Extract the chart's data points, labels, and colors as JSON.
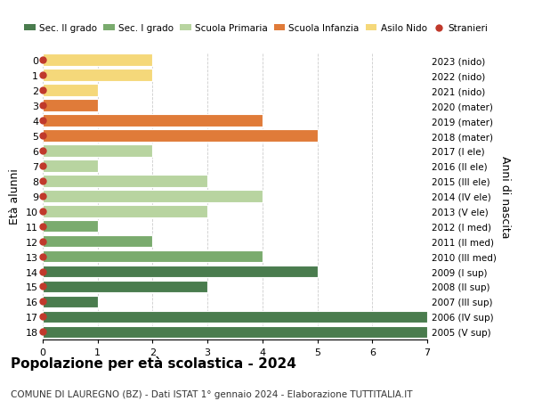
{
  "ages": [
    18,
    17,
    16,
    15,
    14,
    13,
    12,
    11,
    10,
    9,
    8,
    7,
    6,
    5,
    4,
    3,
    2,
    1,
    0
  ],
  "right_labels": [
    "2005 (V sup)",
    "2006 (IV sup)",
    "2007 (III sup)",
    "2008 (II sup)",
    "2009 (I sup)",
    "2010 (III med)",
    "2011 (II med)",
    "2012 (I med)",
    "2013 (V ele)",
    "2014 (IV ele)",
    "2015 (III ele)",
    "2016 (II ele)",
    "2017 (I ele)",
    "2018 (mater)",
    "2019 (mater)",
    "2020 (mater)",
    "2021 (nido)",
    "2022 (nido)",
    "2023 (nido)"
  ],
  "bar_values": [
    7,
    7,
    1,
    3,
    5,
    4,
    2,
    1,
    3,
    4,
    3,
    1,
    2,
    5,
    4,
    1,
    1,
    2,
    2
  ],
  "bar_colors": [
    "#4a7c4e",
    "#4a7c4e",
    "#4a7c4e",
    "#4a7c4e",
    "#4a7c4e",
    "#7aab6e",
    "#7aab6e",
    "#7aab6e",
    "#b8d4a0",
    "#b8d4a0",
    "#b8d4a0",
    "#b8d4a0",
    "#b8d4a0",
    "#e07b39",
    "#e07b39",
    "#e07b39",
    "#f5d87a",
    "#f5d87a",
    "#f5d87a"
  ],
  "stranieri_color": "#c0392b",
  "stranieri_marker_size": 5,
  "ylabel": "Età alunni",
  "right_ylabel": "Anni di nascita",
  "xlim": [
    0,
    7
  ],
  "xticks": [
    0,
    1,
    2,
    3,
    4,
    5,
    6,
    7
  ],
  "title": "Popolazione per età scolastica - 2024",
  "subtitle": "COMUNE DI LAUREGNO (BZ) - Dati ISTAT 1° gennaio 2024 - Elaborazione TUTTITALIA.IT",
  "legend_labels": [
    "Sec. II grado",
    "Sec. I grado",
    "Scuola Primaria",
    "Scuola Infanzia",
    "Asilo Nido",
    "Stranieri"
  ],
  "legend_colors": [
    "#4a7c4e",
    "#7aab6e",
    "#b8d4a0",
    "#e07b39",
    "#f5d87a",
    "#c0392b"
  ],
  "bg_color": "#ffffff",
  "grid_color": "#cccccc",
  "bar_height": 0.8
}
